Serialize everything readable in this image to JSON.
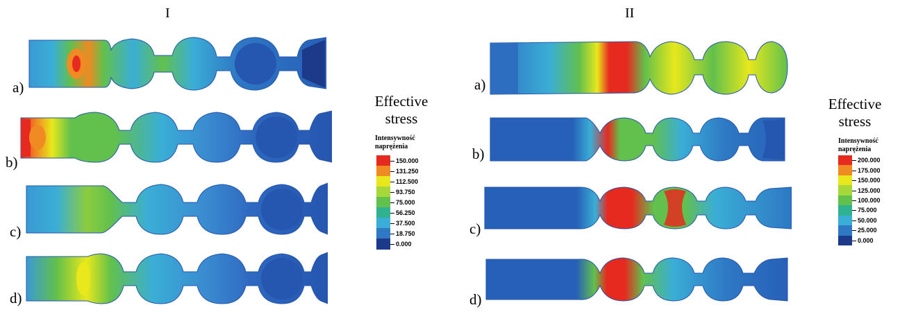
{
  "panels": [
    {
      "title": "I",
      "labels": [
        "a)",
        "b)",
        "c)",
        "d)"
      ],
      "legend": {
        "title_line1": "Effective",
        "title_line2": "stress",
        "subtitle_line1": "Intensywność",
        "subtitle_line2": "naprężenia",
        "ticks": [
          "150.000",
          "131.250",
          "112.500",
          "93.750",
          "75.000",
          "56.250",
          "37.500",
          "18.750",
          "0.000"
        ],
        "colors": [
          "#e62a20",
          "#f08a22",
          "#e8e81c",
          "#a6d83a",
          "#62c04c",
          "#2fb290",
          "#3aaed6",
          "#2e78c4",
          "#1d3a8a"
        ]
      }
    },
    {
      "title": "II",
      "labels": [
        "a)",
        "b)",
        "c)",
        "d)"
      ],
      "legend": {
        "title_line1": "Effective",
        "title_line2": "stress",
        "subtitle_line1": "Intensywność",
        "subtitle_line2": "naprężenia",
        "ticks": [
          "200.000",
          "175.000",
          "150.000",
          "125.000",
          "100.000",
          "75.000",
          "50.000",
          "25.000",
          "0.000"
        ],
        "colors": [
          "#e62a20",
          "#f08a22",
          "#e8e81c",
          "#a6d83a",
          "#62c04c",
          "#2fb290",
          "#3aaed6",
          "#2e78c4",
          "#1d3a8a"
        ]
      }
    }
  ]
}
